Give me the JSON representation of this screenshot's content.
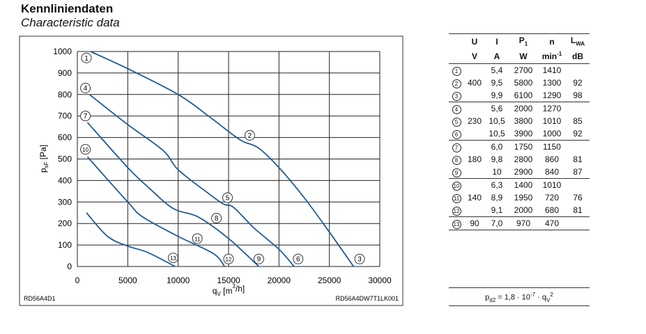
{
  "header": {
    "title": "Kennliniendaten",
    "subtitle": "Characteristic data"
  },
  "chart_data": {
    "type": "line",
    "xlabel": "q_V [m³/h]",
    "ylabel": "p_sF [Pa]",
    "xlabel_main": "q",
    "xlabel_sub": "V",
    "xlabel_unit": " [m",
    "xlabel_sup": "3",
    "xlabel_end": "/h]",
    "ylabel_main": "p",
    "ylabel_sub": "sF",
    "ylabel_unit": " [Pa]",
    "xlim": [
      0,
      30000
    ],
    "ylim": [
      0,
      1000
    ],
    "xticks": [
      0,
      5000,
      10000,
      15000,
      20000,
      25000,
      30000
    ],
    "yticks": [
      0,
      100,
      200,
      300,
      400,
      500,
      600,
      700,
      800,
      900,
      1000
    ],
    "grid": true,
    "left_note": "RD56A4D1",
    "right_note": "RD56A4DW7T1LK001",
    "color": "#1f5a94",
    "series": [
      {
        "name": "1-2-3",
        "x": [
          1300,
          5000,
          10000,
          13000,
          15500,
          16500,
          18000,
          20000,
          22500,
          25000,
          27400
        ],
        "y": [
          1000,
          920,
          800,
          700,
          610,
          580,
          550,
          460,
          320,
          160,
          0
        ]
      },
      {
        "name": "4-5-6",
        "x": [
          1200,
          5000,
          8500,
          10000,
          13000,
          14500,
          15500,
          17500,
          20000,
          21500
        ],
        "y": [
          800,
          660,
          540,
          450,
          340,
          290,
          275,
          180,
          80,
          0
        ]
      },
      {
        "name": "7-8-9",
        "x": [
          1000,
          5000,
          7000,
          9500,
          12000,
          15000,
          18000
        ],
        "y": [
          670,
          460,
          370,
          270,
          230,
          130,
          0
        ]
      },
      {
        "name": "10-11-12",
        "x": [
          1000,
          5000,
          6500,
          10000,
          13500,
          14600
        ],
        "y": [
          510,
          300,
          230,
          140,
          60,
          0
        ]
      },
      {
        "name": "13",
        "x": [
          900,
          3000,
          5000,
          7000,
          9700
        ],
        "y": [
          250,
          140,
          95,
          65,
          0
        ]
      }
    ],
    "point_labels": [
      {
        "label": "1",
        "x": 900,
        "y": 970
      },
      {
        "label": "2",
        "x": 17100,
        "y": 610
      },
      {
        "label": "3",
        "x": 28000,
        "y": 35
      },
      {
        "label": "4",
        "x": 800,
        "y": 830
      },
      {
        "label": "5",
        "x": 14900,
        "y": 320
      },
      {
        "label": "6",
        "x": 21900,
        "y": 35
      },
      {
        "label": "7",
        "x": 800,
        "y": 700
      },
      {
        "label": "8",
        "x": 13800,
        "y": 225
      },
      {
        "label": "9",
        "x": 18000,
        "y": 35
      },
      {
        "label": "10",
        "x": 800,
        "y": 545
      },
      {
        "label": "11",
        "x": 11900,
        "y": 130
      },
      {
        "label": "12",
        "x": 15000,
        "y": 35
      },
      {
        "label": "13",
        "x": 9500,
        "y": 40
      }
    ]
  },
  "table": {
    "headers": {
      "U": "U",
      "I": "I",
      "P": "P",
      "P_sub": "1",
      "n": "n",
      "L": "L",
      "L_sub": "WA"
    },
    "units": {
      "U": "V",
      "I": "A",
      "P": "W",
      "n": "min",
      "n_sup": "-1",
      "L": "dB"
    },
    "rows": [
      {
        "id": "1",
        "U": "",
        "I": "5,4",
        "P": "2700",
        "n": "1410",
        "L": ""
      },
      {
        "id": "2",
        "U": "400",
        "I": "9,5",
        "P": "5800",
        "n": "1300",
        "L": "92"
      },
      {
        "id": "3",
        "U": "",
        "I": "9,9",
        "P": "6100",
        "n": "1290",
        "L": "98"
      },
      {
        "id": "4",
        "U": "",
        "I": "5,6",
        "P": "2000",
        "n": "1270",
        "L": ""
      },
      {
        "id": "5",
        "U": "230",
        "I": "10,5",
        "P": "3800",
        "n": "1010",
        "L": "85"
      },
      {
        "id": "6",
        "U": "",
        "I": "10,5",
        "P": "3900",
        "n": "1000",
        "L": "92"
      },
      {
        "id": "7",
        "U": "",
        "I": "6,0",
        "P": "1750",
        "n": "1150",
        "L": ""
      },
      {
        "id": "8",
        "U": "180",
        "I": "9,8",
        "P": "2800",
        "n": "860",
        "L": "81"
      },
      {
        "id": "9",
        "U": "",
        "I": "10",
        "P": "2900",
        "n": "840",
        "L": "87"
      },
      {
        "id": "10",
        "U": "",
        "I": "6,3",
        "P": "1400",
        "n": "1010",
        "L": ""
      },
      {
        "id": "11",
        "U": "140",
        "I": "8,9",
        "P": "1950",
        "n": "720",
        "L": "76"
      },
      {
        "id": "12",
        "U": "",
        "I": "9,1",
        "P": "2000",
        "n": "680",
        "L": "81"
      },
      {
        "id": "13",
        "U": "90",
        "I": "7,0",
        "P": "970",
        "n": "470",
        "L": ""
      }
    ]
  },
  "formula": {
    "p": "p",
    "p_sub": "d2",
    "mid": " = 1,8 · 10",
    "exp": "-7",
    "dot": " · q",
    "q_sub": "V",
    "q_sup": "2"
  }
}
